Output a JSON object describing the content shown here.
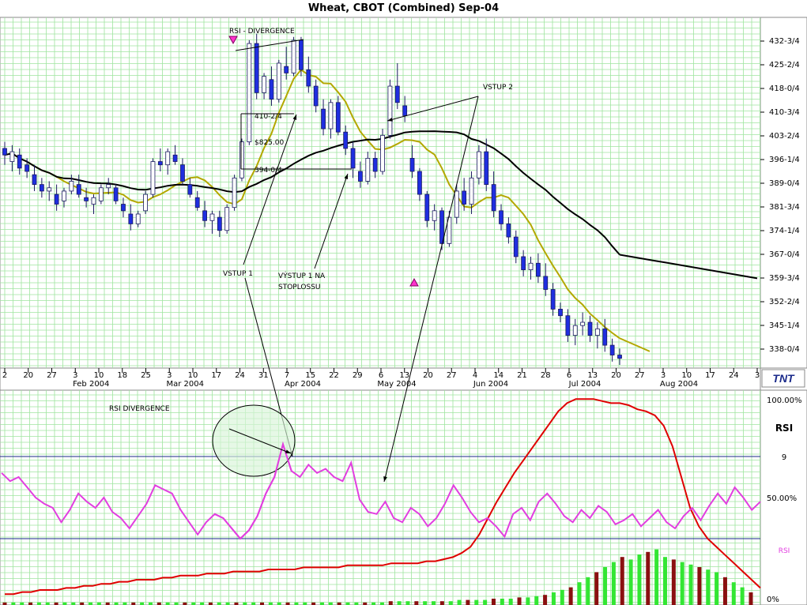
{
  "title": "Wheat, CBOT (Combined) Sep-04",
  "colors": {
    "grid": "#9fe59f",
    "candle_up": "#ffffff",
    "candle_down": "#1f2ee0",
    "sma_short": "#b3a800",
    "sma_long": "#000000",
    "rsi_line": "#e23ee0",
    "red_line": "#e00000",
    "vol_up": "#33e633",
    "vol_down": "#8a1010",
    "hline": "#1a2a8a",
    "annotation_arrow": "#ff33cc",
    "ellipse_fill": "#d8f5d8"
  },
  "logo_text": "TNT",
  "annotations": {
    "rsi_divergence_top": "RSI - DIVERGENCE",
    "vstup2": "VSTUP 2",
    "vstup1": "VSTUP 1",
    "vystup1_line1": "VÝSTUP 1 NA",
    "vystup1_line2": "STOPLOSSU",
    "label_410": "410-2/4",
    "label_825": "$825.00",
    "label_394": "394-0/4",
    "rsi_divergence_bottom": "RSI DIVERGENCE"
  },
  "indicator": {
    "name": "RSI",
    "param": "9",
    "label_right": "RSI",
    "axis_labels": [
      "100.00%",
      "50.00%",
      "0%"
    ]
  },
  "chart_data": [
    {
      "type": "candlestick",
      "title": "Wheat, CBOT (Combined) Sep-04",
      "y_axis_labels": [
        "432-3/4",
        "425-2/4",
        "418-0/4",
        "410-3/4",
        "403-2/4",
        "396-1/4",
        "389-0/4",
        "381-3/4",
        "374-1/4",
        "367-0/4",
        "359-3/4",
        "352-2/4",
        "345-1/4",
        "338-0/4"
      ],
      "ylim": [
        331,
        436
      ],
      "x_tick_labels": [
        "2",
        "20",
        "27",
        "3",
        "10",
        "18",
        "25",
        "3",
        "10",
        "17",
        "24",
        "31",
        "7",
        "15",
        "22",
        "29",
        "6",
        "13",
        "20",
        "27",
        "4",
        "14",
        "21",
        "28",
        "6",
        "13",
        "20",
        "27",
        "3",
        "10",
        "17",
        "24",
        "3"
      ],
      "month_labels": [
        "Feb 2004",
        "Mar 2004",
        "Apr 2004",
        "May 2004",
        "Jun 2004",
        "Jul 2004",
        "Aug 2004"
      ],
      "ohlc_approx": [
        [
          397,
          399,
          392,
          395
        ],
        [
          393,
          398,
          390,
          396
        ],
        [
          395,
          397,
          389,
          391
        ],
        [
          392,
          394,
          388,
          390
        ],
        [
          389,
          392,
          384,
          386
        ],
        [
          386,
          388,
          382,
          384
        ],
        [
          384,
          387,
          381,
          385
        ],
        [
          383,
          386,
          378,
          380
        ],
        [
          381,
          385,
          379,
          384
        ],
        [
          384,
          389,
          383,
          387
        ],
        [
          386,
          389,
          382,
          383
        ],
        [
          382,
          385,
          379,
          381
        ],
        [
          380,
          383,
          377,
          382
        ],
        [
          381,
          386,
          380,
          385
        ],
        [
          385,
          388,
          383,
          386
        ],
        [
          385,
          386,
          380,
          381
        ],
        [
          380,
          382,
          376,
          378
        ],
        [
          377,
          380,
          372,
          374
        ],
        [
          374,
          378,
          373,
          377
        ],
        [
          378,
          384,
          377,
          383
        ],
        [
          383,
          394,
          382,
          393
        ],
        [
          393,
          397,
          390,
          392
        ],
        [
          392,
          397,
          389,
          396
        ],
        [
          395,
          398,
          392,
          393
        ],
        [
          392,
          394,
          386,
          387
        ],
        [
          386,
          388,
          382,
          383
        ],
        [
          382,
          384,
          378,
          379
        ],
        [
          378,
          381,
          373,
          375
        ],
        [
          375,
          378,
          371,
          377
        ],
        [
          376,
          378,
          370,
          372
        ],
        [
          372,
          380,
          371,
          379
        ],
        [
          379,
          389,
          378,
          388
        ],
        [
          388,
          400,
          387,
          399
        ],
        [
          399,
          430,
          398,
          429
        ],
        [
          429,
          432,
          412,
          414
        ],
        [
          414,
          420,
          412,
          419
        ],
        [
          418,
          422,
          410,
          412
        ],
        [
          412,
          424,
          411,
          423
        ],
        [
          422,
          428,
          418,
          420
        ],
        [
          420,
          431,
          419,
          430
        ],
        [
          430,
          431,
          419,
          421
        ],
        [
          421,
          425,
          414,
          416
        ],
        [
          416,
          418,
          408,
          410
        ],
        [
          409,
          412,
          401,
          403
        ],
        [
          403,
          412,
          400,
          411
        ],
        [
          411,
          413,
          401,
          402
        ],
        [
          402,
          404,
          395,
          397
        ],
        [
          397,
          399,
          388,
          391
        ],
        [
          390,
          393,
          385,
          387
        ],
        [
          387,
          396,
          386,
          394
        ],
        [
          394,
          396,
          388,
          390
        ],
        [
          390,
          403,
          389,
          401
        ],
        [
          401,
          418,
          400,
          416
        ],
        [
          416,
          423,
          409,
          411
        ],
        [
          410,
          413,
          405,
          407
        ],
        [
          394,
          398,
          388,
          390
        ],
        [
          390,
          391,
          381,
          383
        ],
        [
          383,
          384,
          373,
          375
        ],
        [
          375,
          380,
          372,
          378
        ],
        [
          378,
          379,
          366,
          368
        ],
        [
          368,
          378,
          367,
          376
        ],
        [
          376,
          386,
          374,
          384
        ],
        [
          384,
          388,
          378,
          380
        ],
        [
          380,
          390,
          377,
          388
        ],
        [
          388,
          398,
          386,
          396
        ],
        [
          396,
          400,
          384,
          386
        ],
        [
          386,
          390,
          376,
          378
        ],
        [
          378,
          380,
          372,
          374
        ],
        [
          374,
          376,
          368,
          370
        ],
        [
          370,
          372,
          362,
          364
        ],
        [
          364,
          366,
          358,
          360
        ],
        [
          360,
          364,
          357,
          362
        ],
        [
          362,
          365,
          356,
          358
        ],
        [
          358,
          362,
          352,
          354
        ],
        [
          354,
          356,
          346,
          348
        ],
        [
          348,
          350,
          344,
          346
        ],
        [
          346,
          348,
          338,
          340
        ],
        [
          340,
          345,
          337,
          343
        ],
        [
          343,
          347,
          340,
          344
        ],
        [
          344,
          346,
          338,
          340
        ],
        [
          340,
          344,
          336,
          342
        ],
        [
          342,
          345,
          335,
          337
        ],
        [
          337,
          339,
          332,
          334
        ],
        [
          334,
          336,
          331,
          333
        ]
      ],
      "series": [
        {
          "name": "",
          "role": "short moving average"
        },
        {
          "name": "",
          "role": "long moving average"
        }
      ]
    },
    {
      "type": "line",
      "title": "RSI",
      "param": "9",
      "ylim": [
        0,
        100
      ],
      "levels": [
        70,
        30
      ],
      "y_axis_labels": [
        "100.00%",
        "50.00%",
        "0%"
      ],
      "rsi_values": [
        62,
        58,
        60,
        55,
        50,
        47,
        45,
        38,
        44,
        52,
        48,
        45,
        50,
        43,
        40,
        35,
        41,
        47,
        56,
        54,
        52,
        44,
        38,
        32,
        38,
        42,
        40,
        35,
        30,
        34,
        41,
        52,
        60,
        76,
        63,
        60,
        66,
        62,
        64,
        60,
        58,
        67,
        49,
        43,
        42,
        48,
        40,
        38,
        45,
        42,
        36,
        40,
        47,
        56,
        50,
        43,
        38,
        40,
        36,
        31,
        42,
        45,
        39,
        48,
        52,
        47,
        41,
        38,
        44,
        40,
        46,
        43,
        37,
        39,
        42,
        36,
        40,
        44,
        38,
        35,
        41,
        45,
        39,
        46,
        52,
        47,
        55,
        50,
        44,
        48
      ],
      "red_line_values": [
        3,
        3,
        4,
        4,
        5,
        5,
        5,
        6,
        6,
        7,
        7,
        8,
        8,
        9,
        9,
        10,
        10,
        10,
        11,
        11,
        12,
        12,
        12,
        13,
        13,
        13,
        14,
        14,
        14,
        14,
        15,
        15,
        15,
        15,
        16,
        16,
        16,
        16,
        16,
        17,
        17,
        17,
        17,
        17,
        18,
        18,
        18,
        18,
        19,
        19,
        20,
        21,
        23,
        26,
        32,
        40,
        48,
        55,
        62,
        68,
        74,
        80,
        86,
        92,
        96,
        98,
        98,
        98,
        97,
        96,
        96,
        95,
        93,
        92,
        90,
        85,
        75,
        60,
        45,
        36,
        30,
        26,
        22,
        18,
        14,
        10,
        6
      ],
      "volume": [
        2,
        2,
        2,
        2,
        2,
        2,
        2,
        2,
        2,
        2,
        2,
        2,
        2,
        2,
        2,
        2,
        2,
        2,
        2,
        2,
        2,
        2,
        2,
        2,
        2,
        2,
        2,
        2,
        2,
        2,
        2,
        2,
        2,
        2,
        2,
        2,
        2,
        2,
        2,
        2,
        2,
        2,
        2,
        2,
        2,
        3,
        3,
        3,
        3,
        3,
        3,
        3,
        3,
        4,
        4,
        4,
        4,
        5,
        5,
        5,
        6,
        6,
        7,
        8,
        10,
        12,
        14,
        18,
        22,
        26,
        30,
        34,
        38,
        36,
        40,
        42,
        44,
        38,
        36,
        34,
        32,
        30,
        28,
        26,
        22,
        18,
        14,
        10
      ]
    }
  ]
}
